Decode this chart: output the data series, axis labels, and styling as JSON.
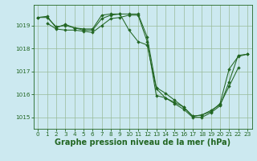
{
  "background_color": "#cce9f0",
  "grid_color": "#99bb99",
  "line_color": "#226622",
  "marker_color": "#226622",
  "xlabel": "Graphe pression niveau de la mer (hPa)",
  "xlabel_fontsize": 7.0,
  "xlim": [
    -0.5,
    23.5
  ],
  "ylim": [
    1014.5,
    1019.9
  ],
  "yticks": [
    1015,
    1016,
    1017,
    1018,
    1019
  ],
  "ytick_labels": [
    "1015",
    "1016",
    "1017",
    "1018",
    "1019"
  ],
  "xticks": [
    0,
    1,
    2,
    3,
    4,
    5,
    6,
    7,
    8,
    9,
    10,
    11,
    12,
    13,
    14,
    15,
    16,
    17,
    18,
    19,
    20,
    21,
    22,
    23
  ],
  "series": [
    {
      "x": [
        0,
        1,
        2,
        3,
        4,
        5,
        6,
        7,
        8,
        9,
        10,
        11,
        12,
        13,
        14,
        15,
        16,
        17,
        18,
        19,
        20,
        21,
        22
      ],
      "y": [
        1019.35,
        1019.4,
        1018.9,
        1019.05,
        1018.9,
        1018.85,
        1018.85,
        1019.45,
        1019.5,
        1019.5,
        1018.8,
        1018.3,
        1018.15,
        1016.25,
        1015.85,
        1015.65,
        1015.45,
        1015.05,
        1015.1,
        1015.3,
        1015.55,
        1016.35,
        1017.15
      ]
    },
    {
      "x": [
        0,
        1,
        2,
        3,
        4,
        5,
        6,
        7,
        8,
        9,
        10,
        11,
        12,
        13,
        14,
        15,
        16,
        17,
        18,
        19,
        20,
        21,
        22,
        23
      ],
      "y": [
        1019.35,
        1019.35,
        1018.95,
        1019.0,
        1018.9,
        1018.8,
        1018.8,
        1019.3,
        1019.45,
        1019.5,
        1019.5,
        1019.5,
        1018.5,
        1016.3,
        1016.05,
        1015.75,
        1015.45,
        1015.05,
        1015.1,
        1015.25,
        1015.6,
        1017.1,
        1017.65,
        1017.75
      ]
    },
    {
      "x": [
        1,
        2,
        3,
        4,
        5,
        6,
        7,
        8,
        9,
        10,
        11,
        12,
        13,
        14,
        15,
        16,
        17,
        18,
        19,
        20,
        21,
        22,
        23
      ],
      "y": [
        1019.1,
        1018.85,
        1018.8,
        1018.8,
        1018.75,
        1018.7,
        1019.0,
        1019.3,
        1019.35,
        1019.45,
        1019.45,
        1018.3,
        1015.95,
        1015.85,
        1015.6,
        1015.35,
        1015.0,
        1015.0,
        1015.2,
        1015.5,
        1016.55,
        1017.7,
        1017.75
      ]
    }
  ]
}
